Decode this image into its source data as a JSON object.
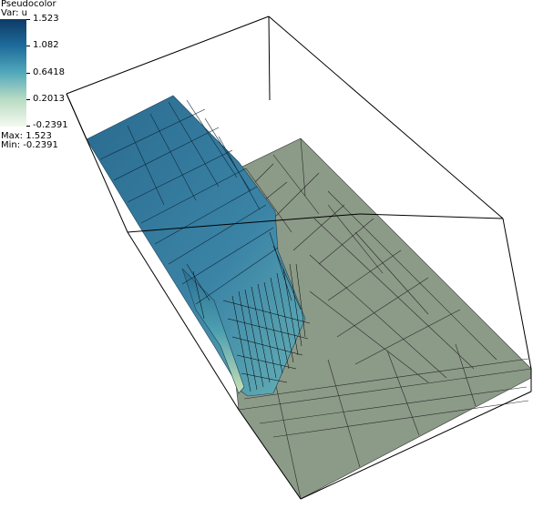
{
  "legend": {
    "title": "Pseudocolor",
    "variable": "Var: u",
    "ticks": [
      "1.523",
      "1.082",
      "0.6418",
      "0.2013",
      "-0.2391"
    ],
    "max_label": "Max:  1.523",
    "min_label": "Min: -0.2391"
  },
  "colors": {
    "colormap_top": "#0e3a66",
    "colormap_bottom": "#f4f9ef",
    "surface_high": "#2a6b90",
    "surface_low": "#8d9a88",
    "mesh_lines": "#000000"
  },
  "scene": {
    "type": "3D pseudocolor surface plot with adaptive mesh refinement",
    "variable_range": [
      -0.2391,
      1.523
    ]
  }
}
